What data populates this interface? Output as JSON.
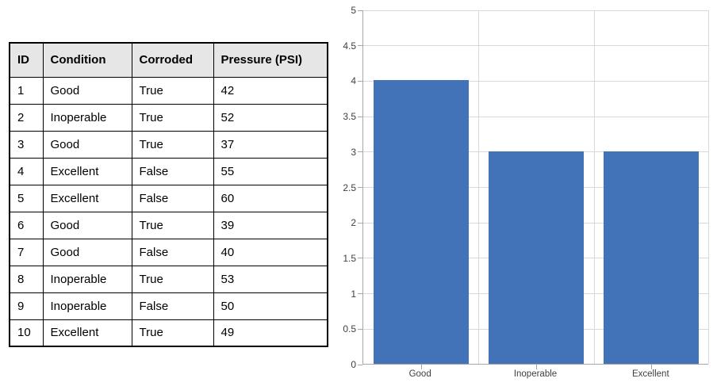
{
  "table": {
    "columns": [
      "ID",
      "Condition",
      "Corroded",
      "Pressure (PSI)"
    ],
    "rows": [
      [
        "1",
        "Good",
        "True",
        "42"
      ],
      [
        "2",
        "Inoperable",
        "True",
        "52"
      ],
      [
        "3",
        "Good",
        "True",
        "37"
      ],
      [
        "4",
        "Excellent",
        "False",
        "55"
      ],
      [
        "5",
        "Excellent",
        "False",
        "60"
      ],
      [
        "6",
        "Good",
        "True",
        "39"
      ],
      [
        "7",
        "Good",
        "False",
        "40"
      ],
      [
        "8",
        "Inoperable",
        "True",
        "53"
      ],
      [
        "9",
        "Inoperable",
        "False",
        "50"
      ],
      [
        "10",
        "Excellent",
        "True",
        "49"
      ]
    ],
    "header_bg": "#e7e6e6",
    "border_color": "#000000"
  },
  "chart_data": {
    "type": "bar",
    "categories": [
      "Good",
      "Inoperable",
      "Excellent"
    ],
    "values": [
      4,
      3,
      3
    ],
    "title": "",
    "xlabel": "",
    "ylabel": "",
    "ylim": [
      0,
      5
    ],
    "ytick_step": 0.5,
    "ytick_labels": [
      "0",
      "0.5",
      "1",
      "1.5",
      "2",
      "2.5",
      "3",
      "3.5",
      "4",
      "4.5",
      "5"
    ],
    "grid": true,
    "legend_position": "none",
    "bar_color": "#4273b8",
    "gridline_color": "#d9d9d9",
    "axis_color": "#a6a6a6",
    "tick_label_color": "#404040"
  }
}
